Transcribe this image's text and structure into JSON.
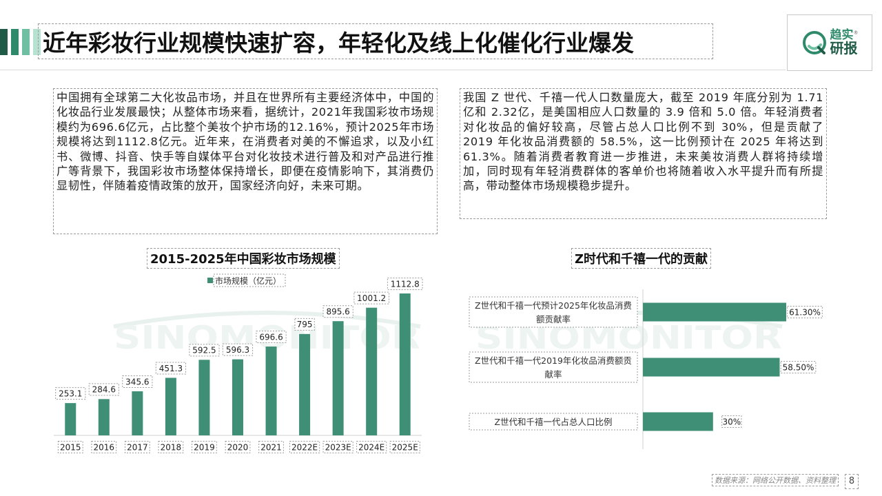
{
  "header": {
    "title": "近年彩妆行业规模快速扩容，年轻化及线上化催化行业爆发",
    "logo_line1": "趋实",
    "logo_line2": "研报",
    "logo_mark": "®"
  },
  "paragraphs": {
    "left": "中国拥有全球第二大化妆品市场，并且在世界所有主要经济体中，中国的化妆品行业发展最快；从整体市场来看，据统计，2021年我国彩妆市场规模约为696.6亿元，占比整个美妆个护市场的12.16%，预计2025年市场规模将达到1112.8亿元。近年来，在消费者对美的不懈追求，以及小红书、微博、抖音、快手等自媒体平台对化妆技术进行普及和对产品进行推广等背景下，我国彩妆市场整体保持增长，即便在疫情影响下，其消费仍显韧性，伴随着疫情政策的放开，国家经济向好，未来可期。",
    "right": "我国 Z 世代、千禧一代人口数量庞大，截至 2019 年底分别为 1.71 亿和 2.32亿，是美国相应人口数量的 3.9 倍和 5.0 倍。年轻消费者对化妆品的偏好较高，尽管占总人口比例不到 30%，但是贡献了 2019 年化妆品消费额的 58.5%，这一比例预计在 2025 年将达到 61.3%。随着消费者教育进一步推进，未来美妆消费人群将持续增加，同时现有年轻消费群体的客单价也将随着收入水平提升而有所提高，带动整体市场规模稳步提升。"
  },
  "watermark": "SINOMONITOR",
  "colors": {
    "bar": "#3e8f75",
    "accent_dark": "#1f5b46",
    "accent_mid": "#2f8a6c",
    "accent_light": "#6fc0a3"
  },
  "chart_data": [
    {
      "type": "bar",
      "title": "2015-2025年中国彩妆市场规模",
      "categories": [
        "2015",
        "2016",
        "2017",
        "2018",
        "2019",
        "2020",
        "2021",
        "2022E",
        "2023E",
        "2024E",
        "2025E"
      ],
      "series": [
        {
          "name": "市场规模（亿元）",
          "values": [
            253.1,
            284.6,
            345.6,
            451.3,
            592.5,
            596.3,
            696.6,
            795,
            895.6,
            1001.2,
            1112.8
          ]
        }
      ],
      "data_labels": [
        "253.1",
        "284.6",
        "345.6",
        "451.3",
        "592.5",
        "596.3",
        "696.6",
        "795",
        "895.6",
        "1001.2",
        "1112.8"
      ],
      "ylim": [
        0,
        1112.8
      ],
      "legend": "top"
    },
    {
      "type": "bar",
      "orientation": "horizontal",
      "title": "Z时代和千禧一代的贡献",
      "categories": [
        "Z世代和千禧一代预计2025年化妆品消费额贡献率",
        "Z世代和千禧一代2019年化妆品消费额贡献率",
        "Z世代和千禧一代占总人口比例"
      ],
      "category_lines": [
        [
          "Z世代和千禧一代预计2025年化妆品消费",
          "额贡献率"
        ],
        [
          "Z世代和千禧一代2019年化妆品消费额贡",
          "献率"
        ],
        [
          "Z世代和千禧一代占总人口比例"
        ]
      ],
      "values": [
        61.3,
        58.5,
        30
      ],
      "data_labels": [
        "61.30%",
        "58.50%",
        "30%"
      ],
      "xlim": [
        0,
        61.3
      ]
    }
  ],
  "footer": {
    "source": "数据来源：网络公开数据、资料整理",
    "page": "8"
  }
}
